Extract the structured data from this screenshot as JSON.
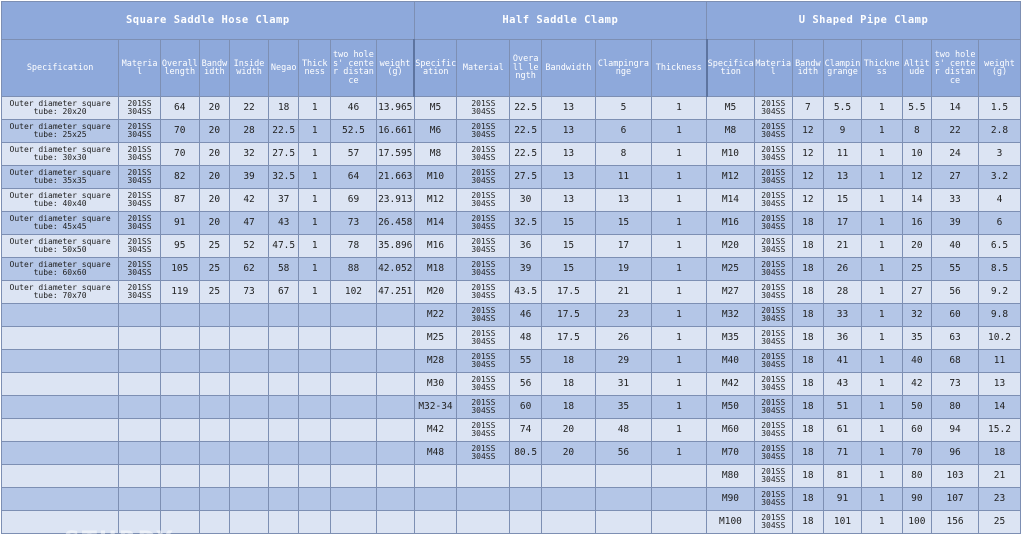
{
  "sections": [
    {
      "title": "Square Saddle Hose Clamp"
    },
    {
      "title": "Half Saddle Clamp"
    },
    {
      "title": "U Shaped Pipe Clamp"
    }
  ],
  "headers": {
    "square": [
      "Specification",
      "Material",
      "Overall length",
      "Bandwidth",
      "Inside width",
      "Negao",
      "Thickness",
      "two holes' center distance",
      "weight (g)"
    ],
    "half": [
      "Specification",
      "Material",
      "Overall length",
      "Bandwidth",
      "Clampingrange",
      "Thickness"
    ],
    "u": [
      "Specification",
      "Material",
      "Bandwidth",
      "Clampingrange",
      "Thickness",
      "Altitude",
      "two holes' center distance",
      "weight(g)"
    ]
  },
  "material": "201SS 304SS",
  "square_rows": [
    [
      "Outer diameter square tube: 20x20",
      "64",
      "20",
      "22",
      "18",
      "1",
      "46",
      "13.965"
    ],
    [
      "Outer diameter square tube: 25x25",
      "70",
      "20",
      "28",
      "22.5",
      "1",
      "52.5",
      "16.661"
    ],
    [
      "Outer diameter square tube: 30x30",
      "70",
      "20",
      "32",
      "27.5",
      "1",
      "57",
      "17.595"
    ],
    [
      "Outer diameter square tube: 35x35",
      "82",
      "20",
      "39",
      "32.5",
      "1",
      "64",
      "21.663"
    ],
    [
      "Outer diameter square tube: 40x40",
      "87",
      "20",
      "42",
      "37",
      "1",
      "69",
      "23.913"
    ],
    [
      "Outer diameter square tube: 45x45",
      "91",
      "20",
      "47",
      "43",
      "1",
      "73",
      "26.458"
    ],
    [
      "Outer diameter square tube: 50x50",
      "95",
      "25",
      "52",
      "47.5",
      "1",
      "78",
      "35.896"
    ],
    [
      "Outer diameter square tube: 60x60",
      "105",
      "25",
      "62",
      "58",
      "1",
      "88",
      "42.052"
    ],
    [
      "Outer diameter square tube: 70x70",
      "119",
      "25",
      "73",
      "67",
      "1",
      "102",
      "47.251"
    ]
  ],
  "half_rows": [
    [
      "M5",
      "22.5",
      "13",
      "5",
      "1"
    ],
    [
      "M6",
      "22.5",
      "13",
      "6",
      "1"
    ],
    [
      "M8",
      "22.5",
      "13",
      "8",
      "1"
    ],
    [
      "M10",
      "27.5",
      "13",
      "11",
      "1"
    ],
    [
      "M12",
      "30",
      "13",
      "13",
      "1"
    ],
    [
      "M14",
      "32.5",
      "15",
      "15",
      "1"
    ],
    [
      "M16",
      "36",
      "15",
      "17",
      "1"
    ],
    [
      "M18",
      "39",
      "15",
      "19",
      "1"
    ],
    [
      "M20",
      "43.5",
      "17.5",
      "21",
      "1"
    ],
    [
      "M22",
      "46",
      "17.5",
      "23",
      "1"
    ],
    [
      "M25",
      "48",
      "17.5",
      "26",
      "1"
    ],
    [
      "M28",
      "55",
      "18",
      "29",
      "1"
    ],
    [
      "M30",
      "56",
      "18",
      "31",
      "1"
    ],
    [
      "M32-34",
      "60",
      "18",
      "35",
      "1"
    ],
    [
      "M42",
      "74",
      "20",
      "48",
      "1"
    ],
    [
      "M48",
      "80.5",
      "20",
      "56",
      "1"
    ]
  ],
  "u_rows": [
    [
      "M5",
      "7",
      "5.5",
      "1",
      "5.5",
      "14",
      "1.5"
    ],
    [
      "M8",
      "12",
      "9",
      "1",
      "8",
      "22",
      "2.8"
    ],
    [
      "M10",
      "12",
      "11",
      "1",
      "10",
      "24",
      "3"
    ],
    [
      "M12",
      "12",
      "13",
      "1",
      "12",
      "27",
      "3.2"
    ],
    [
      "M14",
      "12",
      "15",
      "1",
      "14",
      "33",
      "4"
    ],
    [
      "M16",
      "18",
      "17",
      "1",
      "16",
      "39",
      "6"
    ],
    [
      "M20",
      "18",
      "21",
      "1",
      "20",
      "40",
      "6.5"
    ],
    [
      "M25",
      "18",
      "26",
      "1",
      "25",
      "55",
      "8.5"
    ],
    [
      "M27",
      "18",
      "28",
      "1",
      "27",
      "56",
      "9.2"
    ],
    [
      "M32",
      "18",
      "33",
      "1",
      "32",
      "60",
      "9.8"
    ],
    [
      "M35",
      "18",
      "36",
      "1",
      "35",
      "63",
      "10.2"
    ],
    [
      "M40",
      "18",
      "41",
      "1",
      "40",
      "68",
      "11"
    ],
    [
      "M42",
      "18",
      "43",
      "1",
      "42",
      "73",
      "13"
    ],
    [
      "M50",
      "18",
      "51",
      "1",
      "50",
      "80",
      "14"
    ],
    [
      "M60",
      "18",
      "61",
      "1",
      "60",
      "94",
      "15.2"
    ],
    [
      "M70",
      "18",
      "71",
      "1",
      "70",
      "96",
      "18"
    ],
    [
      "M80",
      "18",
      "81",
      "1",
      "80",
      "103",
      "21"
    ],
    [
      "M90",
      "18",
      "91",
      "1",
      "90",
      "107",
      "23"
    ],
    [
      "M100",
      "18",
      "101",
      "1",
      "100",
      "156",
      "25"
    ]
  ]
}
